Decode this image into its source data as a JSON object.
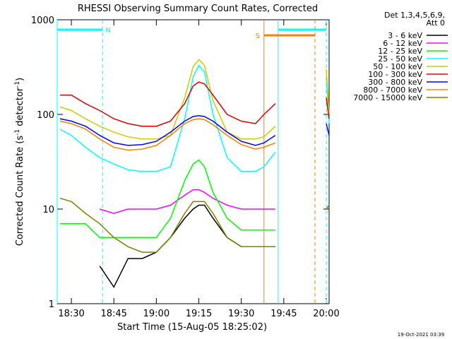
{
  "chart_data": {
    "type": "line",
    "title": "RHESSI Observing Summary Count Rates, Corrected",
    "xlabel": "Start Time (15-Aug-05 18:25:02)",
    "ylabel": [
      "Corrected Count Rate (s",
      "-1",
      " detector",
      "-1",
      ")"
    ],
    "legend_title": [
      "Det 1,3,4,5,6,9,",
      "Att 0"
    ],
    "footer": "19-Oct-2021 03:39",
    "log_y": true,
    "xlim": [
      "18:25",
      "20:01"
    ],
    "xticks": [
      "18:30",
      "18:45",
      "19:00",
      "19:15",
      "19:30",
      "19:45",
      "20:00"
    ],
    "ylim": [
      1,
      1000
    ],
    "yticks": [
      1,
      10,
      100,
      1000
    ],
    "x": [
      "18:26",
      "18:30",
      "18:35",
      "18:40",
      "18:45",
      "18:50",
      "18:55",
      "19:00",
      "19:05",
      "19:10",
      "19:13",
      "19:15",
      "19:17",
      "19:20",
      "19:25",
      "19:30",
      "19:35",
      "19:38",
      "19:42",
      "19:50",
      "20:00",
      "20:01"
    ],
    "series": [
      {
        "name": "3 - 6 keV",
        "color": "#000000",
        "values": [
          null,
          null,
          null,
          2.5,
          1.5,
          3,
          3,
          3.5,
          5,
          8,
          10,
          11,
          11,
          8,
          5,
          4,
          4,
          4,
          4,
          null,
          null,
          null
        ]
      },
      {
        "name": "6 - 12 keV",
        "color": "#ff00ff",
        "values": [
          null,
          null,
          null,
          10,
          9,
          10,
          10,
          10,
          11,
          14,
          16,
          16,
          15,
          13,
          11,
          10,
          10,
          10,
          10,
          null,
          null,
          null
        ]
      },
      {
        "name": "12 - 25 keV",
        "color": "#00ff00",
        "values": [
          7,
          7,
          7,
          5,
          5,
          5,
          5,
          5,
          8,
          20,
          30,
          33,
          28,
          15,
          8,
          6,
          6,
          6,
          6,
          null,
          null,
          10
        ]
      },
      {
        "name": "25 - 50 keV",
        "color": "#00ffff",
        "values": [
          70,
          60,
          45,
          35,
          30,
          26,
          25,
          25,
          28,
          90,
          250,
          330,
          280,
          100,
          35,
          25,
          25,
          28,
          40,
          null,
          250,
          80
        ]
      },
      {
        "name": "50 - 100 keV",
        "color": "#cccc00",
        "values": [
          120,
          110,
          90,
          75,
          65,
          58,
          55,
          55,
          60,
          150,
          320,
          380,
          330,
          140,
          65,
          55,
          55,
          58,
          75,
          null,
          300,
          100
        ]
      },
      {
        "name": "100 - 300 keV",
        "color": "#e00000",
        "values": [
          160,
          160,
          130,
          110,
          90,
          80,
          75,
          75,
          85,
          130,
          200,
          220,
          210,
          160,
          100,
          85,
          80,
          100,
          130,
          null,
          150,
          90
        ]
      },
      {
        "name": "300 - 800 keV",
        "color": "#0000ff",
        "values": [
          90,
          85,
          75,
          60,
          50,
          47,
          48,
          52,
          65,
          85,
          95,
          97,
          95,
          85,
          65,
          52,
          47,
          50,
          60,
          null,
          80,
          60
        ]
      },
      {
        "name": "800 - 7000 keV",
        "color": "#ff8000",
        "values": [
          85,
          80,
          70,
          55,
          45,
          42,
          43,
          47,
          60,
          80,
          88,
          90,
          88,
          78,
          60,
          48,
          43,
          45,
          50,
          null,
          null,
          100
        ]
      },
      {
        "name": "7000 - 15000 keV",
        "color": "#808000",
        "values": [
          13,
          12,
          9,
          7,
          5,
          4,
          3.5,
          3.5,
          5,
          9,
          12,
          12,
          12,
          9,
          5,
          4,
          4,
          4,
          4,
          null,
          10,
          11
        ]
      }
    ],
    "intervals": [
      {
        "label": "N",
        "start": "18:25",
        "end": "18:41",
        "color": "#00ffff",
        "level": 2
      },
      {
        "label": null,
        "start": "19:43",
        "end": "20:00",
        "color": "#00ffff",
        "level": 2
      },
      {
        "label": "S",
        "start": "19:38",
        "end": "19:56",
        "color": "#ff8000",
        "level": 1
      }
    ]
  }
}
